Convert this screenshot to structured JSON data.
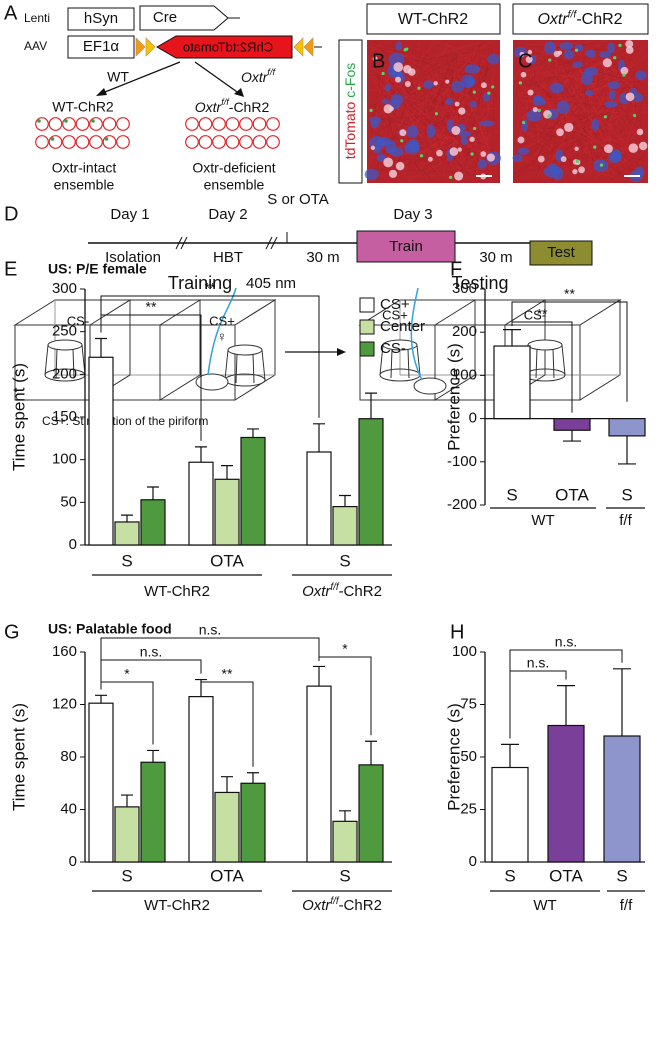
{
  "panel_a": {
    "letter": "A",
    "lenti": "Lenti",
    "hsyn": "hSyn",
    "cre": "Cre",
    "aav": "AAV",
    "ef1a": "EF1α",
    "chr2": "ChR2:tdTomato",
    "wt": "WT",
    "oxtr": {
      "name": "Oxtr",
      "sup": "f/f"
    },
    "wt_chr2": "WT-ChR2",
    "oxtr_chr2": {
      "name": "Oxtr",
      "sup": "f/f",
      "suffix": "-ChR2"
    },
    "intact": [
      "Oxtr-intact",
      "ensemble"
    ],
    "deficient": [
      "Oxtr-deficient",
      "ensemble"
    ]
  },
  "panel_bc": {
    "b": "B",
    "c": "C",
    "wt_chr2": "WT-ChR2",
    "oxtr_chr2": {
      "name": "Oxtr",
      "sup": "f/f",
      "suffix": "-ChR2"
    },
    "stain_red": "tdTomato",
    "stain_green": "c-Fos"
  },
  "panel_d": {
    "letter": "D",
    "day1": "Day 1",
    "day2": "Day 2",
    "treatment": "S or OTA",
    "day3": "Day 3",
    "isolation": "Isolation",
    "hbt": "HBT",
    "wait1": "30 m",
    "train": "Train",
    "wait2": "30 m",
    "test": "Test",
    "training": "Training",
    "laser": "405 nm",
    "left_cs_minus": "CS-",
    "left_cs_plus": "CS+",
    "female": "♀",
    "testing": "Testing",
    "right_cs_plus": "CS+",
    "right_cs_minus": "CS-",
    "note": "CS+: Stimulation of the piriform"
  },
  "chart_data": [
    {
      "type": "bar",
      "panel": "E",
      "title": "US: P/E female",
      "ylabel": "Time spent (s)",
      "categories": [
        "S",
        "OTA",
        "S"
      ],
      "groups": [
        "WT-ChR2",
        {
          "name": "Oxtr",
          "sup": "f/f",
          "suffix": "-ChR2"
        }
      ],
      "series": [
        {
          "name": "CS+",
          "color": "#ffffff",
          "values": [
            220,
            97,
            109
          ],
          "errors": [
            22,
            18,
            33
          ]
        },
        {
          "name": "Center",
          "color": "#c6e0a4",
          "values": [
            27,
            77,
            45
          ],
          "errors": [
            8,
            16,
            13
          ]
        },
        {
          "name": "CS-",
          "color": "#4f9a3e",
          "values": [
            53,
            126,
            148
          ],
          "errors": [
            15,
            10,
            30
          ]
        }
      ],
      "ylim": [
        0,
        300
      ],
      "yticks": [
        0,
        50,
        100,
        150,
        200,
        250,
        300
      ],
      "legend": "upper right",
      "annotations": [
        "**",
        "**"
      ]
    },
    {
      "type": "bar",
      "panel": "F",
      "ylabel": "Preference (s)",
      "categories": [
        "S",
        "OTA",
        "S"
      ],
      "groups": [
        "WT",
        "f/f"
      ],
      "values": [
        168,
        -27,
        -40
      ],
      "errors": [
        38,
        25,
        65
      ],
      "colors": [
        "#ffffff",
        "#7a3f98",
        "#8e95cc"
      ],
      "ylim": [
        -200,
        300
      ],
      "yticks": [
        -200,
        -100,
        0,
        100,
        200,
        300
      ],
      "annotations": [
        "**",
        "**"
      ]
    },
    {
      "type": "bar",
      "panel": "G",
      "title": "US: Palatable food",
      "ylabel": "Time spent (s)",
      "categories": [
        "S",
        "OTA",
        "S"
      ],
      "groups": [
        "WT-ChR2",
        {
          "name": "Oxtr",
          "sup": "f/f",
          "suffix": "-ChR2"
        }
      ],
      "series": [
        {
          "name": "CS+",
          "color": "#ffffff",
          "values": [
            121,
            126,
            134
          ],
          "errors": [
            6,
            13,
            15
          ]
        },
        {
          "name": "Center",
          "color": "#c6e0a4",
          "values": [
            42,
            53,
            31
          ],
          "errors": [
            9,
            12,
            8
          ]
        },
        {
          "name": "CS-",
          "color": "#4f9a3e",
          "values": [
            76,
            60,
            74
          ],
          "errors": [
            9,
            8,
            18
          ]
        }
      ],
      "ylim": [
        0,
        160
      ],
      "yticks": [
        0,
        40,
        80,
        120,
        160
      ],
      "annotations": [
        "n.s.",
        "n.s.",
        "*",
        "**",
        "*"
      ]
    },
    {
      "type": "bar",
      "panel": "H",
      "ylabel": "Preference (s)",
      "categories": [
        "S",
        "OTA",
        "S"
      ],
      "groups": [
        "WT",
        "f/f"
      ],
      "values": [
        45,
        65,
        60
      ],
      "errors": [
        11,
        19,
        32
      ],
      "colors": [
        "#ffffff",
        "#7a3f98",
        "#8e95cc"
      ],
      "ylim": [
        0,
        100
      ],
      "yticks": [
        0,
        25,
        50,
        75,
        100
      ],
      "annotations": [
        "n.s.",
        "n.s."
      ]
    }
  ]
}
